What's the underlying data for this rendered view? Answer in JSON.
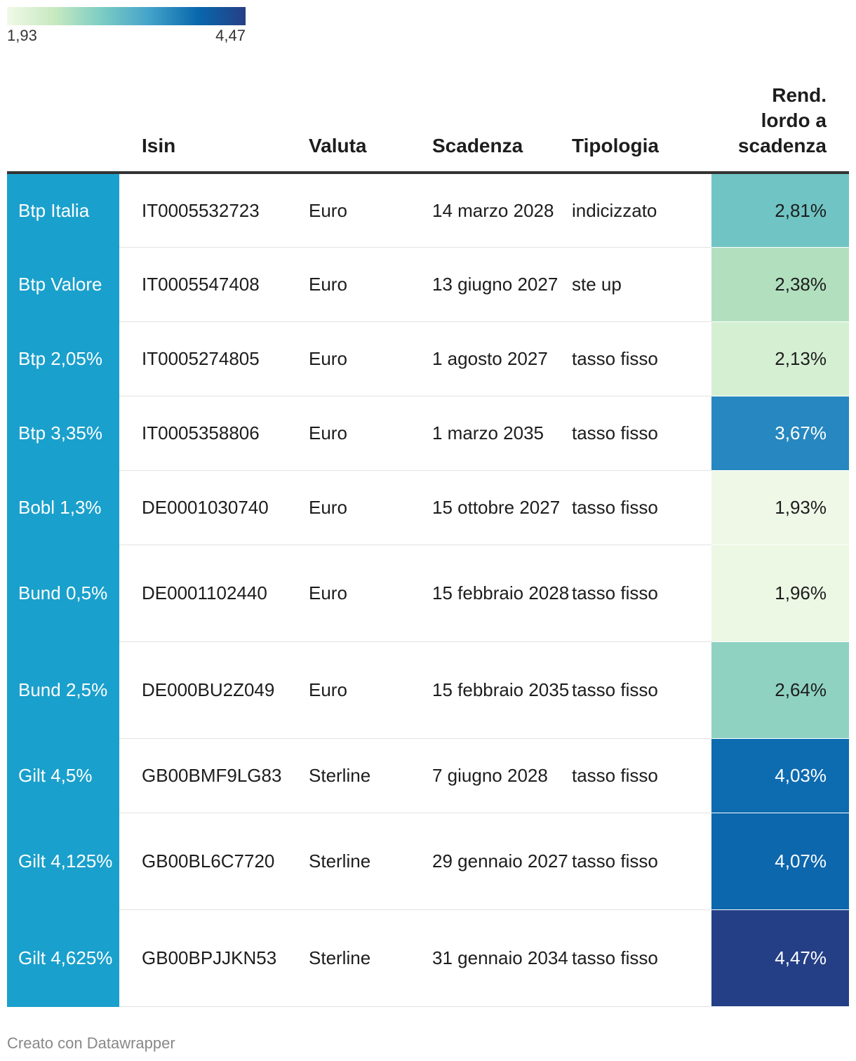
{
  "legend": {
    "min_label": "1,93",
    "max_label": "4,47",
    "min_value": 1.93,
    "max_value": 4.47,
    "gradient_colors": [
      "#f0f9e8",
      "#c7e9c0",
      "#7bccc4",
      "#43a2ca",
      "#0868ac",
      "#253f86"
    ]
  },
  "headers": {
    "name": "",
    "isin": "Isin",
    "valuta": "Valuta",
    "scadenza": "Scadenza",
    "tipologia": "Tipologia",
    "rend_line1": "Rend.",
    "rend_line2": "lordo a",
    "rend_line3": "scadenza"
  },
  "name_column_color": "#1aa0cc",
  "rows": [
    {
      "name": "Btp Italia",
      "isin": "IT0005532723",
      "valuta": "Euro",
      "scadenza": "14 marzo 2028",
      "tipologia": "indicizzato",
      "rend": "2,81%",
      "rend_value": 2.81,
      "color": "#70c4c4",
      "text_color": "#1d1d1d"
    },
    {
      "name": "Btp Valore",
      "isin": "IT0005547408",
      "valuta": "Euro",
      "scadenza": "13 giugno 2027",
      "tipologia": "ste up",
      "rend": "2,38%",
      "rend_value": 2.38,
      "color": "#b2e0bf",
      "text_color": "#1d1d1d"
    },
    {
      "name": "Btp 2,05%",
      "isin": "IT0005274805",
      "valuta": "Euro",
      "scadenza": "1 agosto 2027",
      "tipologia": "tasso fisso",
      "rend": "2,13%",
      "rend_value": 2.13,
      "color": "#d5efd3",
      "text_color": "#1d1d1d"
    },
    {
      "name": "Btp 3,35%",
      "isin": "IT0005358806",
      "valuta": "Euro",
      "scadenza": "1 marzo 2035",
      "tipologia": "tasso fisso",
      "rend": "3,67%",
      "rend_value": 3.67,
      "color": "#2787c0",
      "text_color": "#ffffff"
    },
    {
      "name": "Bobl 1,3%",
      "isin": "DE0001030740",
      "valuta": "Euro",
      "scadenza": "15 ottobre 2027",
      "tipologia": "tasso fisso",
      "rend": "1,93%",
      "rend_value": 1.93,
      "color": "#eff8e7",
      "text_color": "#1d1d1d"
    },
    {
      "name": "Bund 0,5%",
      "isin": "DE0001102440",
      "valuta": "Euro",
      "scadenza": "15 febbraio 2028",
      "tipologia": "tasso fisso",
      "rend": "1,96%",
      "rend_value": 1.96,
      "color": "#ecf7e4",
      "text_color": "#1d1d1d"
    },
    {
      "name": "Bund 2,5%",
      "isin": "DE000BU2Z049",
      "valuta": "Euro",
      "scadenza": "15 febbraio 2035",
      "tipologia": "tasso fisso",
      "rend": "2,64%",
      "rend_value": 2.64,
      "color": "#8fd2c2",
      "text_color": "#1d1d1d"
    },
    {
      "name": "Gilt 4,5%",
      "isin": "GB00BMF9LG83",
      "valuta": "Sterline",
      "scadenza": "7 giugno 2028",
      "tipologia": "tasso fisso",
      "rend": "4,03%",
      "rend_value": 4.03,
      "color": "#0d6bb0",
      "text_color": "#ffffff"
    },
    {
      "name": "Gilt 4,125%",
      "isin": "GB00BL6C7720",
      "valuta": "Sterline",
      "scadenza": "29 gennaio 2027",
      "tipologia": "tasso fisso",
      "rend": "4,07%",
      "rend_value": 4.07,
      "color": "#0c67ad",
      "text_color": "#ffffff"
    },
    {
      "name": "Gilt 4,625%",
      "isin": "GB00BPJJKN53",
      "valuta": "Sterline",
      "scadenza": "31 gennaio 2034",
      "tipologia": "tasso fisso",
      "rend": "4,47%",
      "rend_value": 4.47,
      "color": "#253f86",
      "text_color": "#ffffff"
    }
  ],
  "footer": "Creato con Datawrapper",
  "chart_data": {
    "type": "table",
    "columns": [
      "",
      "Isin",
      "Valuta",
      "Scadenza",
      "Tipologia",
      "Rend. lordo a scadenza"
    ],
    "color_scale": {
      "column": "Rend. lordo a scadenza",
      "min": 1.93,
      "max": 4.47
    },
    "categories": [
      "Btp Italia",
      "Btp Valore",
      "Btp 2,05%",
      "Btp 3,35%",
      "Bobl 1,3%",
      "Bund 0,5%",
      "Bund 2,5%",
      "Gilt 4,5%",
      "Gilt 4,125%",
      "Gilt 4,625%"
    ],
    "values": [
      2.81,
      2.38,
      2.13,
      3.67,
      1.93,
      1.96,
      2.64,
      4.03,
      4.07,
      4.47
    ]
  }
}
